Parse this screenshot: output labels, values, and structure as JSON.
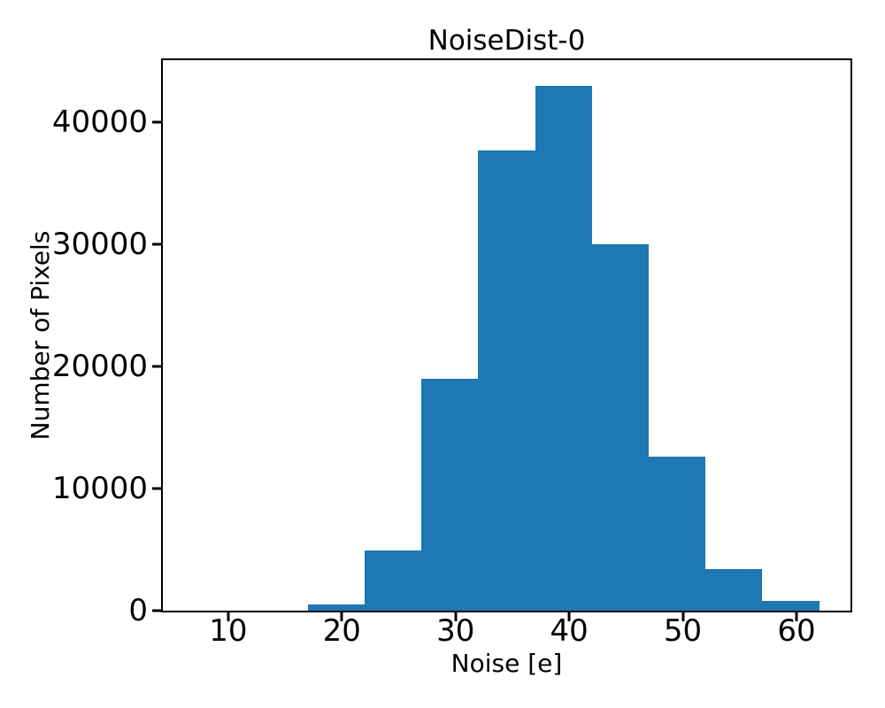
{
  "chart_data": {
    "type": "bar",
    "subtype": "histogram",
    "title": "NoiseDist-0",
    "xlabel": "Noise [e]",
    "ylabel": "Number of Pixels",
    "bar_color": "#1f77b4",
    "axis_color": "#000000",
    "background_color": "#ffffff",
    "bin_edges": [
      17,
      22,
      27,
      32,
      37,
      42,
      47,
      52,
      57,
      62
    ],
    "values": [
      500,
      4900,
      19000,
      37700,
      43000,
      30000,
      12600,
      3400,
      800
    ],
    "xticks": [
      10,
      20,
      30,
      40,
      50,
      60
    ],
    "yticks": [
      0,
      10000,
      20000,
      30000,
      40000
    ],
    "xlim": [
      4.25,
      64.75
    ],
    "ylim": [
      0,
      45100
    ],
    "grid": false,
    "legend": null
  }
}
